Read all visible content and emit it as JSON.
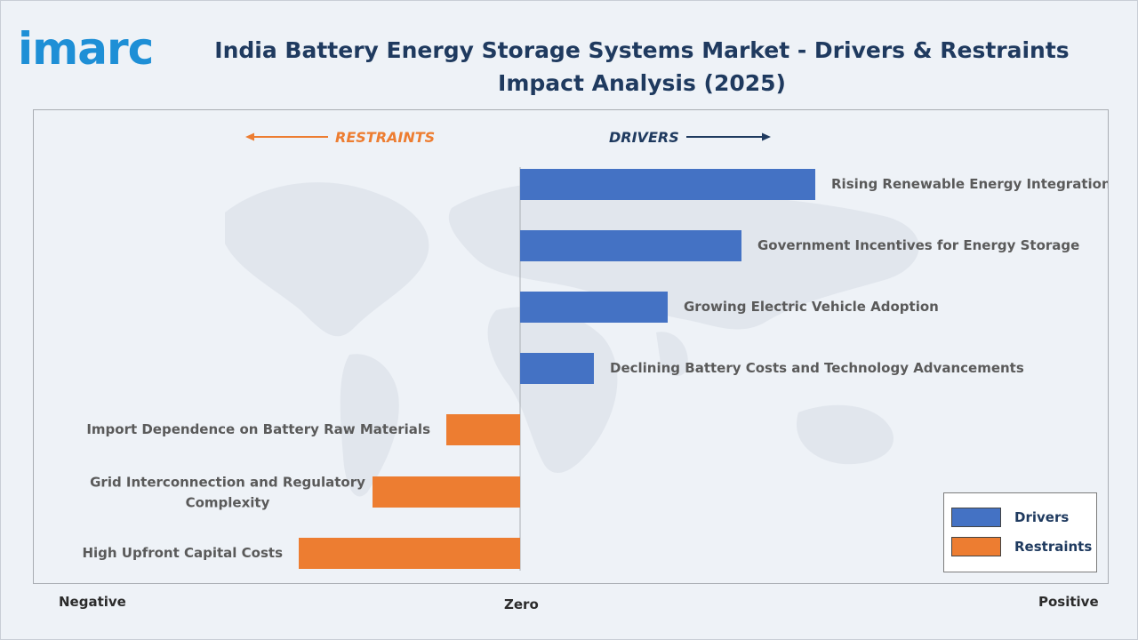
{
  "header": {
    "logo_text": "imarc",
    "title": "India Battery Energy Storage Systems Market - Drivers & Restraints Impact Analysis (2025)"
  },
  "chart_data": {
    "type": "bar",
    "orientation": "horizontal",
    "direction_labels": {
      "restraints": "RESTRAINTS",
      "drivers": "DRIVERS"
    },
    "axis_labels": {
      "negative": "Negative",
      "zero": "Zero",
      "positive": "Positive"
    },
    "categories": [
      "Rising Renewable Energy Integration",
      "Government Incentives for Energy Storage",
      "Growing Electric Vehicle Adoption",
      "Declining Battery Costs and Technology Advancements",
      "Import Dependence on Battery Raw Materials",
      "Grid Interconnection and Regulatory Complexity",
      "High Upfront Capital Costs"
    ],
    "series": [
      {
        "name": "Drivers",
        "color": "#4472c4",
        "values": [
          4,
          3,
          2,
          1,
          null,
          null,
          null
        ]
      },
      {
        "name": "Restraints",
        "color": "#ed7d31",
        "values": [
          null,
          null,
          null,
          null,
          -1,
          -2,
          -3
        ]
      }
    ],
    "legend": {
      "position": "bottom-right",
      "items": [
        "Drivers",
        "Restraints"
      ]
    },
    "grid": false
  }
}
